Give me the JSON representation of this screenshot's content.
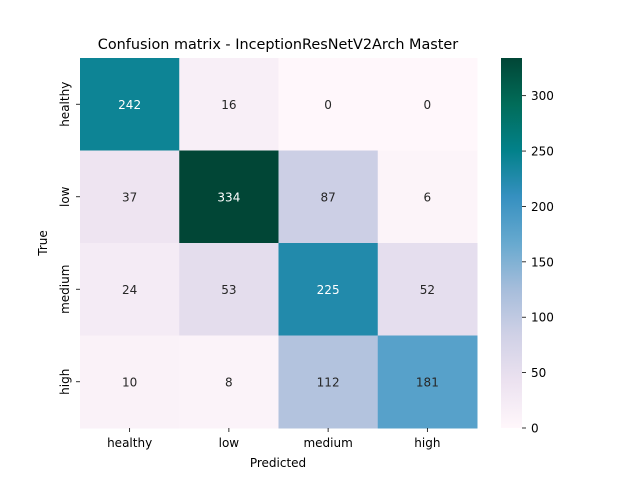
{
  "chart_data": {
    "type": "heatmap",
    "title": "Confusion matrix - InceptionResNetV2Arch Master",
    "xlabel": "Predicted",
    "ylabel": "True",
    "x_categories": [
      "healthy",
      "low",
      "medium",
      "high"
    ],
    "y_categories": [
      "healthy",
      "low",
      "medium",
      "high"
    ],
    "values": [
      [
        242,
        16,
        0,
        0
      ],
      [
        37,
        334,
        87,
        6
      ],
      [
        24,
        53,
        225,
        52
      ],
      [
        10,
        8,
        112,
        181
      ]
    ],
    "colorbar": {
      "min": 0,
      "max": 334,
      "ticks": [
        0,
        50,
        100,
        150,
        200,
        250,
        300
      ],
      "colormap": "PuBuGn"
    }
  }
}
